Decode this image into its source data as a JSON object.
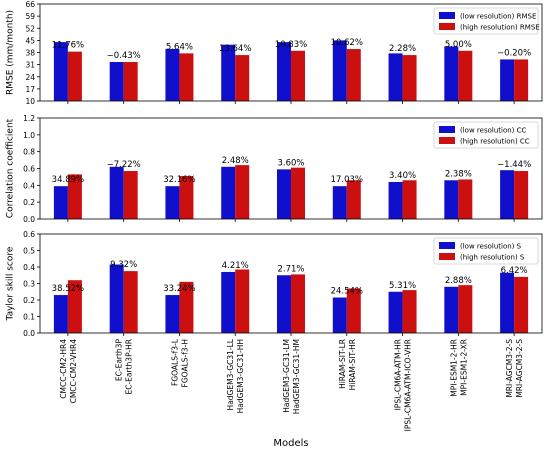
{
  "chart_data": [
    {
      "type": "bar",
      "ylabel": "RMSE (mm/month)",
      "ylim": [
        10,
        66
      ],
      "yticks": [
        10,
        17,
        24,
        31,
        38,
        45,
        52,
        59,
        66
      ],
      "grid": false,
      "legend_position": "top-right",
      "series": [
        {
          "name": "(low resolution) RMSE",
          "color": "#1010cc",
          "values": [
            44.0,
            32.5,
            40.0,
            42.5,
            44.0,
            45.0,
            37.5,
            41.5,
            34.0
          ]
        },
        {
          "name": "(high resolution) RMSE",
          "color": "#cc1010",
          "values": [
            38.5,
            32.5,
            37.5,
            36.5,
            39.0,
            40.0,
            36.5,
            39.0,
            34.0
          ]
        }
      ],
      "annotations": [
        "11.76%",
        "−0.43%",
        "5.64%",
        "13.64%",
        "10.83%",
        "10.62%",
        "2.28%",
        "5.00%",
        "−0.20%"
      ]
    },
    {
      "type": "bar",
      "ylabel": "Correlation coefficient",
      "ylim": [
        0.0,
        1.2
      ],
      "yticks": [
        0.0,
        0.2,
        0.4,
        0.6,
        0.8,
        1.0,
        1.2
      ],
      "grid": false,
      "legend_position": "top-right",
      "series": [
        {
          "name": "(low resolution) CC",
          "color": "#1010cc",
          "values": [
            0.39,
            0.62,
            0.39,
            0.62,
            0.59,
            0.39,
            0.44,
            0.46,
            0.58
          ]
        },
        {
          "name": "(high resolution) CC",
          "color": "#cc1010",
          "values": [
            0.53,
            0.57,
            0.51,
            0.64,
            0.61,
            0.46,
            0.46,
            0.47,
            0.57
          ]
        }
      ],
      "annotations": [
        "34.89%",
        "−7.22%",
        "32.16%",
        "2.48%",
        "3.60%",
        "17.03%",
        "3.40%",
        "2.38%",
        "−1.44%"
      ]
    },
    {
      "type": "bar",
      "ylabel": "Taylor skill score",
      "ylim": [
        0.0,
        0.6
      ],
      "yticks": [
        0.0,
        0.1,
        0.2,
        0.3,
        0.4,
        0.5,
        0.6
      ],
      "grid": false,
      "legend_position": "top-right",
      "series": [
        {
          "name": "(low resolution) S",
          "color": "#1010cc",
          "values": [
            0.23,
            0.415,
            0.23,
            0.37,
            0.35,
            0.215,
            0.25,
            0.28,
            0.365
          ]
        },
        {
          "name": "(high resolution) S",
          "color": "#cc1010",
          "values": [
            0.32,
            0.375,
            0.31,
            0.385,
            0.355,
            0.27,
            0.26,
            0.29,
            0.34
          ]
        }
      ],
      "annotations": [
        "38.52%",
        "9.32%",
        "33.24%",
        "4.21%",
        "2.71%",
        "24.54%",
        "5.31%",
        "2.88%",
        "6.42%"
      ]
    }
  ],
  "x_tick_labels": [
    [
      "CMCC-CM2-HR4",
      "CMCC-CM2-VHR4"
    ],
    [
      "EC-Earth3P",
      "EC-Earth3P-HR"
    ],
    [
      "FGOALS-f3-L",
      "FGOALS-f3-H"
    ],
    [
      "HadGEM3-GC31-LL",
      "HadGEM3-GC31-HH"
    ],
    [
      "HadGEM3-GC31-LM",
      "HadGEM3-GC31-HM"
    ],
    [
      "HiRAM-SIT-LR",
      "HiRAM-SIT-HR"
    ],
    [
      "IPSL-CM6A-ATM-HR",
      "IPSL-CM6A-ATM-ICO-VHR"
    ],
    [
      "MPI-ESM1-2-HR",
      "MPI-ESM1-2-XR"
    ],
    [
      "MRI-AGCM3-2-S",
      "MRI-AGCM3-2-S"
    ]
  ],
  "xlabel": "Models"
}
